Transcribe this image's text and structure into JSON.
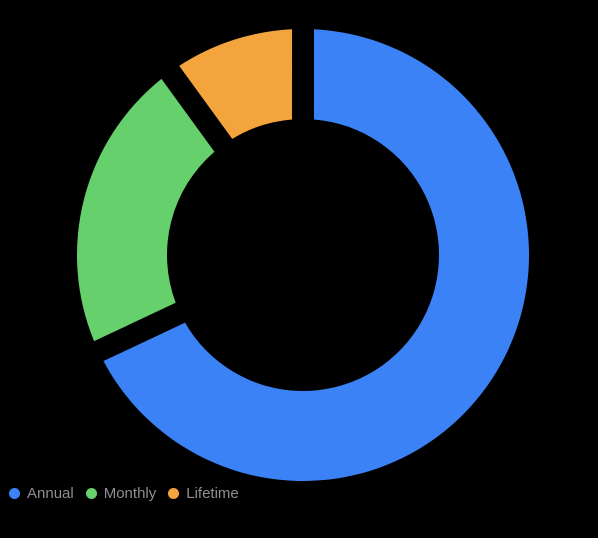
{
  "chart_data": {
    "type": "pie",
    "style": "donut",
    "categories": [
      "Annual",
      "Monthly",
      "Lifetime"
    ],
    "values": [
      68,
      22,
      10
    ],
    "colors": [
      "#3b82f6",
      "#66d06c",
      "#f4a43d"
    ],
    "legend_position": "bottom-left",
    "start_angle": "top, clockwise"
  },
  "legend": {
    "items": [
      {
        "label": "Annual",
        "color": "#3b82f6"
      },
      {
        "label": "Monthly",
        "color": "#66d06c"
      },
      {
        "label": "Lifetime",
        "color": "#f4a43d"
      }
    ]
  }
}
